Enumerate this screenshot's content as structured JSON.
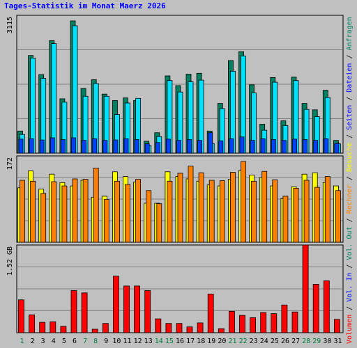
{
  "chart_data": {
    "type": "bar",
    "title": "Tages-Statistik im Monat Maerz 2026",
    "categories": [
      "1",
      "2",
      "3",
      "4",
      "5",
      "6",
      "7",
      "8",
      "9",
      "10",
      "11",
      "12",
      "13",
      "14",
      "15",
      "16",
      "17",
      "18",
      "19",
      "20",
      "21",
      "22",
      "23",
      "24",
      "25",
      "26",
      "27",
      "28",
      "29",
      "30",
      "31"
    ],
    "weekend_days": [
      "1",
      "7",
      "8",
      "14",
      "15",
      "21",
      "22",
      "28",
      "29"
    ],
    "colors": {
      "anfragen": "#008060",
      "dateien": "#00e0ff",
      "seiten": "#0040ff",
      "besuche": "#ffff00",
      "rechner": "#ff8000",
      "volumen": "#ff0000",
      "weekend_label": "#008040",
      "weekday_label": "#000000",
      "background": "#c0c0c0"
    },
    "panels": [
      {
        "id": "requests",
        "ymax_label": "3115",
        "ymax": 3115,
        "series": [
          {
            "name": "Anfragen",
            "values": [
              520,
              2300,
              1850,
              2650,
              1280,
              3115,
              1520,
              1730,
              1390,
              1240,
              1300,
              1240,
              280,
              480,
              1820,
              1590,
              1860,
              1880,
              520,
              1170,
              2180,
              2390,
              1610,
              680,
              1780,
              760,
              1790,
              1170,
              1020,
              1480,
              300
            ]
          },
          {
            "name": "Dateien",
            "values": [
              440,
              2240,
              1760,
              2580,
              1200,
              3000,
              1340,
              1640,
              1340,
              910,
              1180,
              1290,
              180,
              390,
              1710,
              1440,
              1680,
              1720,
              230,
              1050,
              1930,
              2290,
              1420,
              540,
              1670,
              650,
              1710,
              1030,
              860,
              1310,
              220
            ]
          },
          {
            "name": "Seiten",
            "values": [
              330,
              340,
              310,
              360,
              320,
              360,
              300,
              340,
              300,
              310,
              340,
              320,
              220,
              250,
              330,
              300,
              320,
              300,
              480,
              290,
              340,
              380,
              300,
              340,
              320,
              300,
              330,
              320,
              300,
              340,
              230
            ]
          }
        ],
        "label_right": [
          "Anfragen",
          "Dateien",
          "Seiten"
        ]
      },
      {
        "id": "visits",
        "ymax_label": "172",
        "ymax": 172,
        "series": [
          {
            "name": "Besuche",
            "values": [
              116,
              152,
              113,
              145,
              127,
              120,
              132,
              96,
              98,
              150,
              140,
              128,
              83,
              83,
              150,
              140,
              135,
              130,
              122,
              120,
              134,
              153,
              143,
              138,
              120,
              93,
              118,
              145,
              148,
              127,
              120
            ]
          },
          {
            "name": "Rechner",
            "values": [
              132,
              130,
              104,
              129,
              120,
              135,
              134,
              158,
              91,
              130,
              123,
              134,
              110,
              82,
              130,
              147,
              162,
              148,
              132,
              131,
              149,
              172,
              130,
              151,
              133,
              98,
              115,
              132,
              117,
              140,
              110
            ]
          }
        ],
        "label_right": [
          "Besuche",
          "Rechner"
        ]
      },
      {
        "id": "volume",
        "ymax_label": "1.52 GB",
        "ymax": 1.52,
        "series": [
          {
            "name": "Volumen",
            "values": [
              0.57,
              0.31,
              0.18,
              0.19,
              0.11,
              0.73,
              0.69,
              0.06,
              0.16,
              0.98,
              0.81,
              0.81,
              0.73,
              0.24,
              0.16,
              0.16,
              0.1,
              0.17,
              0.67,
              0.07,
              0.37,
              0.3,
              0.26,
              0.35,
              0.33,
              0.48,
              0.36,
              1.52,
              0.84,
              0.9,
              0.23
            ]
          }
        ],
        "label_right": [
          "Volumen",
          "Vol. In",
          "Vol. Out"
        ]
      }
    ],
    "grid": true
  }
}
